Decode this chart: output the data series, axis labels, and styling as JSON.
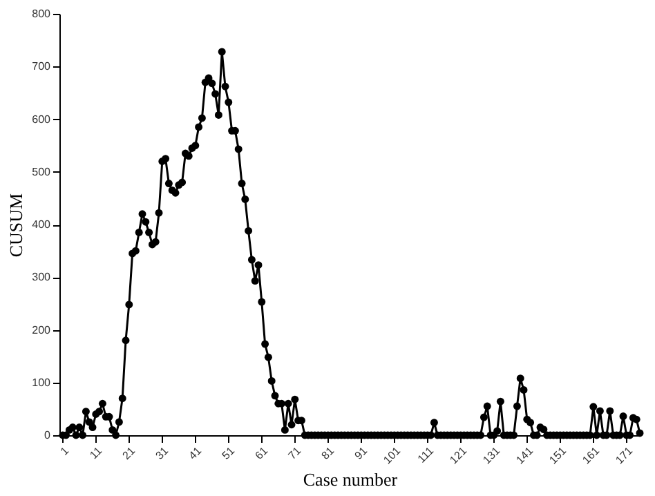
{
  "chart_data": {
    "type": "line",
    "xlabel": "Case number",
    "ylabel": "CUSUM",
    "x": [
      1,
      2,
      3,
      4,
      5,
      6,
      7,
      8,
      9,
      10,
      11,
      12,
      13,
      14,
      15,
      16,
      17,
      18,
      19,
      20,
      21,
      22,
      23,
      24,
      25,
      26,
      27,
      28,
      29,
      30,
      31,
      32,
      33,
      34,
      35,
      36,
      37,
      38,
      39,
      40,
      41,
      42,
      43,
      44,
      45,
      46,
      47,
      48,
      49,
      50,
      51,
      52,
      53,
      54,
      55,
      56,
      57,
      58,
      59,
      60,
      61,
      62,
      63,
      64,
      65,
      66,
      67,
      68,
      69,
      70,
      71,
      72,
      73,
      74,
      75,
      76,
      77,
      78,
      79,
      80,
      81,
      82,
      83,
      84,
      85,
      86,
      87,
      88,
      89,
      90,
      91,
      92,
      93,
      94,
      95,
      96,
      97,
      98,
      99,
      100,
      101,
      102,
      103,
      104,
      105,
      106,
      107,
      108,
      109,
      110,
      111,
      112,
      113,
      114,
      115,
      116,
      117,
      118,
      119,
      120,
      121,
      122,
      123,
      124,
      125,
      126,
      127,
      128,
      129,
      130,
      131,
      132,
      133,
      134,
      135,
      136,
      137,
      138,
      139,
      140,
      141,
      142,
      143,
      144,
      145,
      146,
      147,
      148,
      149,
      150,
      151,
      152,
      153,
      154,
      155,
      156,
      157,
      158,
      159,
      160,
      161,
      162,
      163,
      164,
      165,
      166,
      167,
      168,
      169,
      170,
      171,
      172,
      173,
      174,
      175
    ],
    "series": [
      {
        "color": "#000000",
        "values": [
          0,
          0,
          10,
          15,
          0,
          15,
          0,
          45,
          25,
          15,
          40,
          45,
          60,
          35,
          35,
          10,
          0,
          25,
          70,
          180,
          248,
          345,
          350,
          385,
          420,
          405,
          385,
          362,
          367,
          422,
          520,
          525,
          478,
          465,
          460,
          475,
          480,
          535,
          530,
          545,
          550,
          585,
          602,
          670,
          678,
          668,
          648,
          608,
          728,
          662,
          632,
          578,
          578,
          543,
          478,
          448,
          388,
          333,
          293,
          323,
          253,
          173,
          148,
          103,
          75,
          60,
          60,
          10,
          60,
          20,
          68,
          28,
          28,
          0,
          0,
          0,
          0,
          0,
          0,
          0,
          0,
          0,
          0,
          0,
          0,
          0,
          0,
          0,
          0,
          0,
          0,
          0,
          0,
          0,
          0,
          0,
          0,
          0,
          0,
          0,
          0,
          0,
          0,
          0,
          0,
          0,
          0,
          0,
          0,
          0,
          0,
          0,
          24,
          0,
          0,
          0,
          0,
          0,
          0,
          0,
          0,
          0,
          0,
          0,
          0,
          0,
          0,
          34,
          55,
          0,
          0,
          8,
          64,
          0,
          0,
          0,
          0,
          55,
          108,
          86,
          30,
          24,
          0,
          0,
          15,
          11,
          0,
          0,
          0,
          0,
          0,
          0,
          0,
          0,
          0,
          0,
          0,
          0,
          0,
          0,
          54,
          0,
          46,
          0,
          0,
          46,
          0,
          0,
          0,
          36,
          0,
          0,
          33,
          30,
          4
        ]
      }
    ],
    "xlim": [
      0,
      175
    ],
    "xticks": [
      1,
      11,
      21,
      31,
      41,
      51,
      61,
      71,
      81,
      91,
      101,
      111,
      121,
      131,
      141,
      151,
      161,
      171
    ],
    "ylim": [
      0,
      800
    ],
    "yticks": [
      0,
      100,
      200,
      300,
      400,
      500,
      600,
      700,
      800
    ],
    "grid": false,
    "marker": "circle",
    "line_style": "solid"
  }
}
